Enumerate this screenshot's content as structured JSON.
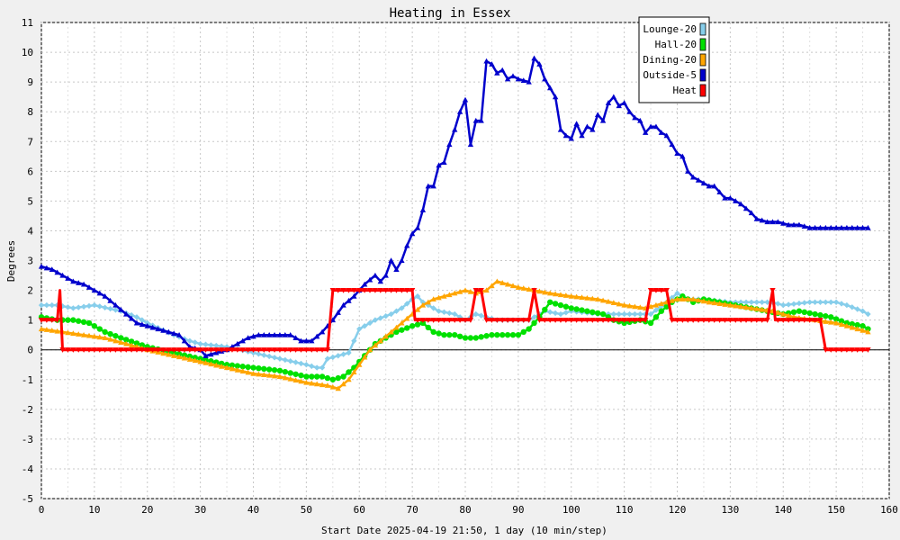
{
  "chart_data": {
    "type": "line",
    "title": "Heating in Essex",
    "xlabel": "Start Date 2025-04-19 21:50, 1 day (10 min/step)",
    "ylabel": "Degrees",
    "xlim": [
      0,
      160
    ],
    "ylim": [
      -5,
      11
    ],
    "x_ticks": [
      0,
      10,
      20,
      30,
      40,
      50,
      60,
      70,
      80,
      90,
      100,
      110,
      120,
      130,
      140,
      150,
      160
    ],
    "y_ticks": [
      -5,
      -4,
      -3,
      -2,
      -1,
      0,
      1,
      2,
      3,
      4,
      5,
      6,
      7,
      8,
      9,
      10,
      11
    ],
    "grid": true,
    "legend_position": "top-right",
    "series": [
      {
        "name": "Lounge-20",
        "color": "#87ceeb",
        "marker": "diamond",
        "points": [
          [
            0,
            1.5
          ],
          [
            3,
            1.5
          ],
          [
            6,
            1.4
          ],
          [
            10,
            1.5
          ],
          [
            15,
            1.3
          ],
          [
            18,
            1.1
          ],
          [
            20,
            0.9
          ],
          [
            25,
            0.5
          ],
          [
            28,
            0.3
          ],
          [
            30,
            0.2
          ],
          [
            35,
            0.1
          ],
          [
            40,
            -0.1
          ],
          [
            45,
            -0.3
          ],
          [
            50,
            -0.5
          ],
          [
            52,
            -0.6
          ],
          [
            53,
            -0.6
          ],
          [
            54,
            -0.3
          ],
          [
            56,
            -0.2
          ],
          [
            58,
            -0.1
          ],
          [
            60,
            0.7
          ],
          [
            63,
            1.0
          ],
          [
            66,
            1.2
          ],
          [
            68,
            1.4
          ],
          [
            70,
            1.7
          ],
          [
            71,
            1.8
          ],
          [
            72,
            1.6
          ],
          [
            75,
            1.3
          ],
          [
            78,
            1.2
          ],
          [
            80,
            1.0
          ],
          [
            82,
            1.2
          ],
          [
            84,
            1.1
          ],
          [
            86,
            1.0
          ],
          [
            90,
            1.0
          ],
          [
            92,
            1.0
          ],
          [
            95,
            1.3
          ],
          [
            98,
            1.2
          ],
          [
            100,
            1.3
          ],
          [
            105,
            1.2
          ],
          [
            110,
            1.2
          ],
          [
            115,
            1.2
          ],
          [
            118,
            1.6
          ],
          [
            120,
            1.9
          ],
          [
            122,
            1.7
          ],
          [
            125,
            1.7
          ],
          [
            130,
            1.6
          ],
          [
            135,
            1.6
          ],
          [
            138,
            1.6
          ],
          [
            140,
            1.5
          ],
          [
            145,
            1.6
          ],
          [
            150,
            1.6
          ],
          [
            152,
            1.5
          ],
          [
            155,
            1.3
          ],
          [
            156,
            1.2
          ]
        ]
      },
      {
        "name": "Hall-20",
        "color": "#00e000",
        "marker": "circle",
        "points": [
          [
            0,
            1.1
          ],
          [
            3,
            1.0
          ],
          [
            6,
            1.0
          ],
          [
            9,
            0.9
          ],
          [
            12,
            0.6
          ],
          [
            15,
            0.4
          ],
          [
            20,
            0.1
          ],
          [
            25,
            -0.1
          ],
          [
            30,
            -0.3
          ],
          [
            35,
            -0.5
          ],
          [
            40,
            -0.6
          ],
          [
            45,
            -0.7
          ],
          [
            50,
            -0.9
          ],
          [
            53,
            -0.9
          ],
          [
            55,
            -1.0
          ],
          [
            57,
            -0.9
          ],
          [
            59,
            -0.6
          ],
          [
            61,
            -0.2
          ],
          [
            63,
            0.2
          ],
          [
            65,
            0.4
          ],
          [
            67,
            0.6
          ],
          [
            70,
            0.8
          ],
          [
            72,
            0.9
          ],
          [
            74,
            0.6
          ],
          [
            76,
            0.5
          ],
          [
            78,
            0.5
          ],
          [
            80,
            0.4
          ],
          [
            82,
            0.4
          ],
          [
            85,
            0.5
          ],
          [
            88,
            0.5
          ],
          [
            90,
            0.5
          ],
          [
            92,
            0.7
          ],
          [
            94,
            1.1
          ],
          [
            96,
            1.6
          ],
          [
            98,
            1.5
          ],
          [
            100,
            1.4
          ],
          [
            103,
            1.3
          ],
          [
            106,
            1.2
          ],
          [
            108,
            1.0
          ],
          [
            110,
            0.9
          ],
          [
            113,
            1.0
          ],
          [
            115,
            0.9
          ],
          [
            117,
            1.3
          ],
          [
            119,
            1.6
          ],
          [
            121,
            1.8
          ],
          [
            123,
            1.6
          ],
          [
            125,
            1.7
          ],
          [
            128,
            1.6
          ],
          [
            131,
            1.5
          ],
          [
            134,
            1.4
          ],
          [
            137,
            1.3
          ],
          [
            140,
            1.2
          ],
          [
            143,
            1.3
          ],
          [
            146,
            1.2
          ],
          [
            149,
            1.1
          ],
          [
            152,
            0.9
          ],
          [
            155,
            0.8
          ],
          [
            156,
            0.7
          ]
        ]
      },
      {
        "name": "Dining-20",
        "color": "#ffa500",
        "marker": "triangle",
        "points": [
          [
            0,
            0.7
          ],
          [
            4,
            0.6
          ],
          [
            8,
            0.5
          ],
          [
            12,
            0.4
          ],
          [
            16,
            0.2
          ],
          [
            20,
            0.0
          ],
          [
            25,
            -0.2
          ],
          [
            30,
            -0.4
          ],
          [
            35,
            -0.6
          ],
          [
            40,
            -0.8
          ],
          [
            45,
            -0.9
          ],
          [
            50,
            -1.1
          ],
          [
            54,
            -1.2
          ],
          [
            56,
            -1.3
          ],
          [
            58,
            -1.0
          ],
          [
            60,
            -0.5
          ],
          [
            62,
            0.0
          ],
          [
            64,
            0.3
          ],
          [
            66,
            0.6
          ],
          [
            68,
            0.9
          ],
          [
            70,
            1.2
          ],
          [
            72,
            1.5
          ],
          [
            74,
            1.7
          ],
          [
            76,
            1.8
          ],
          [
            78,
            1.9
          ],
          [
            80,
            2.0
          ],
          [
            82,
            1.9
          ],
          [
            84,
            2.0
          ],
          [
            86,
            2.3
          ],
          [
            88,
            2.2
          ],
          [
            90,
            2.1
          ],
          [
            93,
            2.0
          ],
          [
            96,
            1.9
          ],
          [
            100,
            1.8
          ],
          [
            105,
            1.7
          ],
          [
            110,
            1.5
          ],
          [
            114,
            1.4
          ],
          [
            118,
            1.6
          ],
          [
            120,
            1.7
          ],
          [
            123,
            1.7
          ],
          [
            126,
            1.6
          ],
          [
            130,
            1.5
          ],
          [
            134,
            1.4
          ],
          [
            138,
            1.3
          ],
          [
            142,
            1.1
          ],
          [
            146,
            1.0
          ],
          [
            150,
            0.9
          ],
          [
            154,
            0.7
          ],
          [
            156,
            0.6
          ]
        ]
      },
      {
        "name": "Outside-5",
        "color": "#0000cc",
        "marker": "triangle",
        "points": [
          [
            0,
            2.8
          ],
          [
            2,
            2.7
          ],
          [
            4,
            2.5
          ],
          [
            6,
            2.3
          ],
          [
            8,
            2.2
          ],
          [
            10,
            2.0
          ],
          [
            12,
            1.8
          ],
          [
            14,
            1.5
          ],
          [
            16,
            1.2
          ],
          [
            18,
            0.9
          ],
          [
            20,
            0.8
          ],
          [
            22,
            0.7
          ],
          [
            24,
            0.6
          ],
          [
            26,
            0.5
          ],
          [
            28,
            0.1
          ],
          [
            30,
            0.0
          ],
          [
            31,
            -0.2
          ],
          [
            33,
            -0.1
          ],
          [
            35,
            0.0
          ],
          [
            37,
            0.2
          ],
          [
            39,
            0.4
          ],
          [
            41,
            0.5
          ],
          [
            43,
            0.5
          ],
          [
            45,
            0.5
          ],
          [
            47,
            0.5
          ],
          [
            49,
            0.3
          ],
          [
            51,
            0.3
          ],
          [
            53,
            0.6
          ],
          [
            55,
            1.0
          ],
          [
            57,
            1.5
          ],
          [
            59,
            1.8
          ],
          [
            61,
            2.2
          ],
          [
            63,
            2.5
          ],
          [
            64,
            2.3
          ],
          [
            65,
            2.5
          ],
          [
            66,
            3.0
          ],
          [
            67,
            2.7
          ],
          [
            68,
            3.0
          ],
          [
            69,
            3.5
          ],
          [
            70,
            3.9
          ],
          [
            71,
            4.1
          ],
          [
            72,
            4.7
          ],
          [
            73,
            5.5
          ],
          [
            74,
            5.5
          ],
          [
            75,
            6.2
          ],
          [
            76,
            6.3
          ],
          [
            77,
            6.9
          ],
          [
            78,
            7.4
          ],
          [
            79,
            8.0
          ],
          [
            80,
            8.4
          ],
          [
            81,
            6.9
          ],
          [
            82,
            7.7
          ],
          [
            83,
            7.7
          ],
          [
            84,
            9.7
          ],
          [
            85,
            9.6
          ],
          [
            86,
            9.3
          ],
          [
            87,
            9.4
          ],
          [
            88,
            9.1
          ],
          [
            89,
            9.2
          ],
          [
            90,
            9.1
          ],
          [
            92,
            9.0
          ],
          [
            93,
            9.8
          ],
          [
            94,
            9.6
          ],
          [
            95,
            9.1
          ],
          [
            96,
            8.8
          ],
          [
            97,
            8.5
          ],
          [
            98,
            7.4
          ],
          [
            99,
            7.2
          ],
          [
            100,
            7.1
          ],
          [
            101,
            7.6
          ],
          [
            102,
            7.2
          ],
          [
            103,
            7.5
          ],
          [
            104,
            7.4
          ],
          [
            105,
            7.9
          ],
          [
            106,
            7.7
          ],
          [
            107,
            8.3
          ],
          [
            108,
            8.5
          ],
          [
            109,
            8.2
          ],
          [
            110,
            8.3
          ],
          [
            111,
            8.0
          ],
          [
            112,
            7.8
          ],
          [
            113,
            7.7
          ],
          [
            114,
            7.3
          ],
          [
            115,
            7.5
          ],
          [
            116,
            7.5
          ],
          [
            117,
            7.3
          ],
          [
            118,
            7.2
          ],
          [
            119,
            6.9
          ],
          [
            120,
            6.6
          ],
          [
            121,
            6.5
          ],
          [
            122,
            6.0
          ],
          [
            123,
            5.8
          ],
          [
            124,
            5.7
          ],
          [
            125,
            5.6
          ],
          [
            126,
            5.5
          ],
          [
            127,
            5.5
          ],
          [
            128,
            5.3
          ],
          [
            129,
            5.1
          ],
          [
            130,
            5.1
          ],
          [
            132,
            4.9
          ],
          [
            134,
            4.6
          ],
          [
            135,
            4.4
          ],
          [
            137,
            4.3
          ],
          [
            139,
            4.3
          ],
          [
            141,
            4.2
          ],
          [
            143,
            4.2
          ],
          [
            145,
            4.1
          ],
          [
            147,
            4.1
          ],
          [
            149,
            4.1
          ],
          [
            151,
            4.1
          ],
          [
            153,
            4.1
          ],
          [
            155,
            4.1
          ],
          [
            156,
            4.1
          ]
        ]
      },
      {
        "name": "Heat",
        "color": "#ff0000",
        "marker": "triangle-down",
        "points": [
          [
            0,
            1
          ],
          [
            3,
            1
          ],
          [
            3.5,
            2
          ],
          [
            4,
            0
          ],
          [
            54,
            0
          ],
          [
            55,
            2
          ],
          [
            70,
            2
          ],
          [
            70.5,
            1
          ],
          [
            81,
            1
          ],
          [
            82,
            2
          ],
          [
            83,
            2
          ],
          [
            84,
            1
          ],
          [
            92,
            1
          ],
          [
            93,
            2
          ],
          [
            94,
            1
          ],
          [
            114,
            1
          ],
          [
            115,
            2
          ],
          [
            118,
            2
          ],
          [
            119,
            1
          ],
          [
            137,
            1
          ],
          [
            138,
            2
          ],
          [
            138.5,
            1
          ],
          [
            147,
            1
          ],
          [
            148,
            0
          ],
          [
            156,
            0
          ]
        ]
      }
    ]
  }
}
